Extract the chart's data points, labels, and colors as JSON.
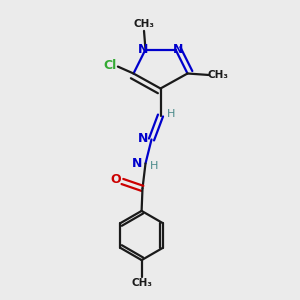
{
  "bg_color": "#ebebeb",
  "bond_color": "#1a1a1a",
  "N_color": "#0000cc",
  "O_color": "#cc0000",
  "Cl_color": "#33aa33",
  "H_color": "#4a8a8a",
  "lw": 1.6,
  "fig_size": [
    3.0,
    3.0
  ],
  "dpi": 100,
  "xlim": [
    0,
    10
  ],
  "ylim": [
    0,
    10
  ]
}
